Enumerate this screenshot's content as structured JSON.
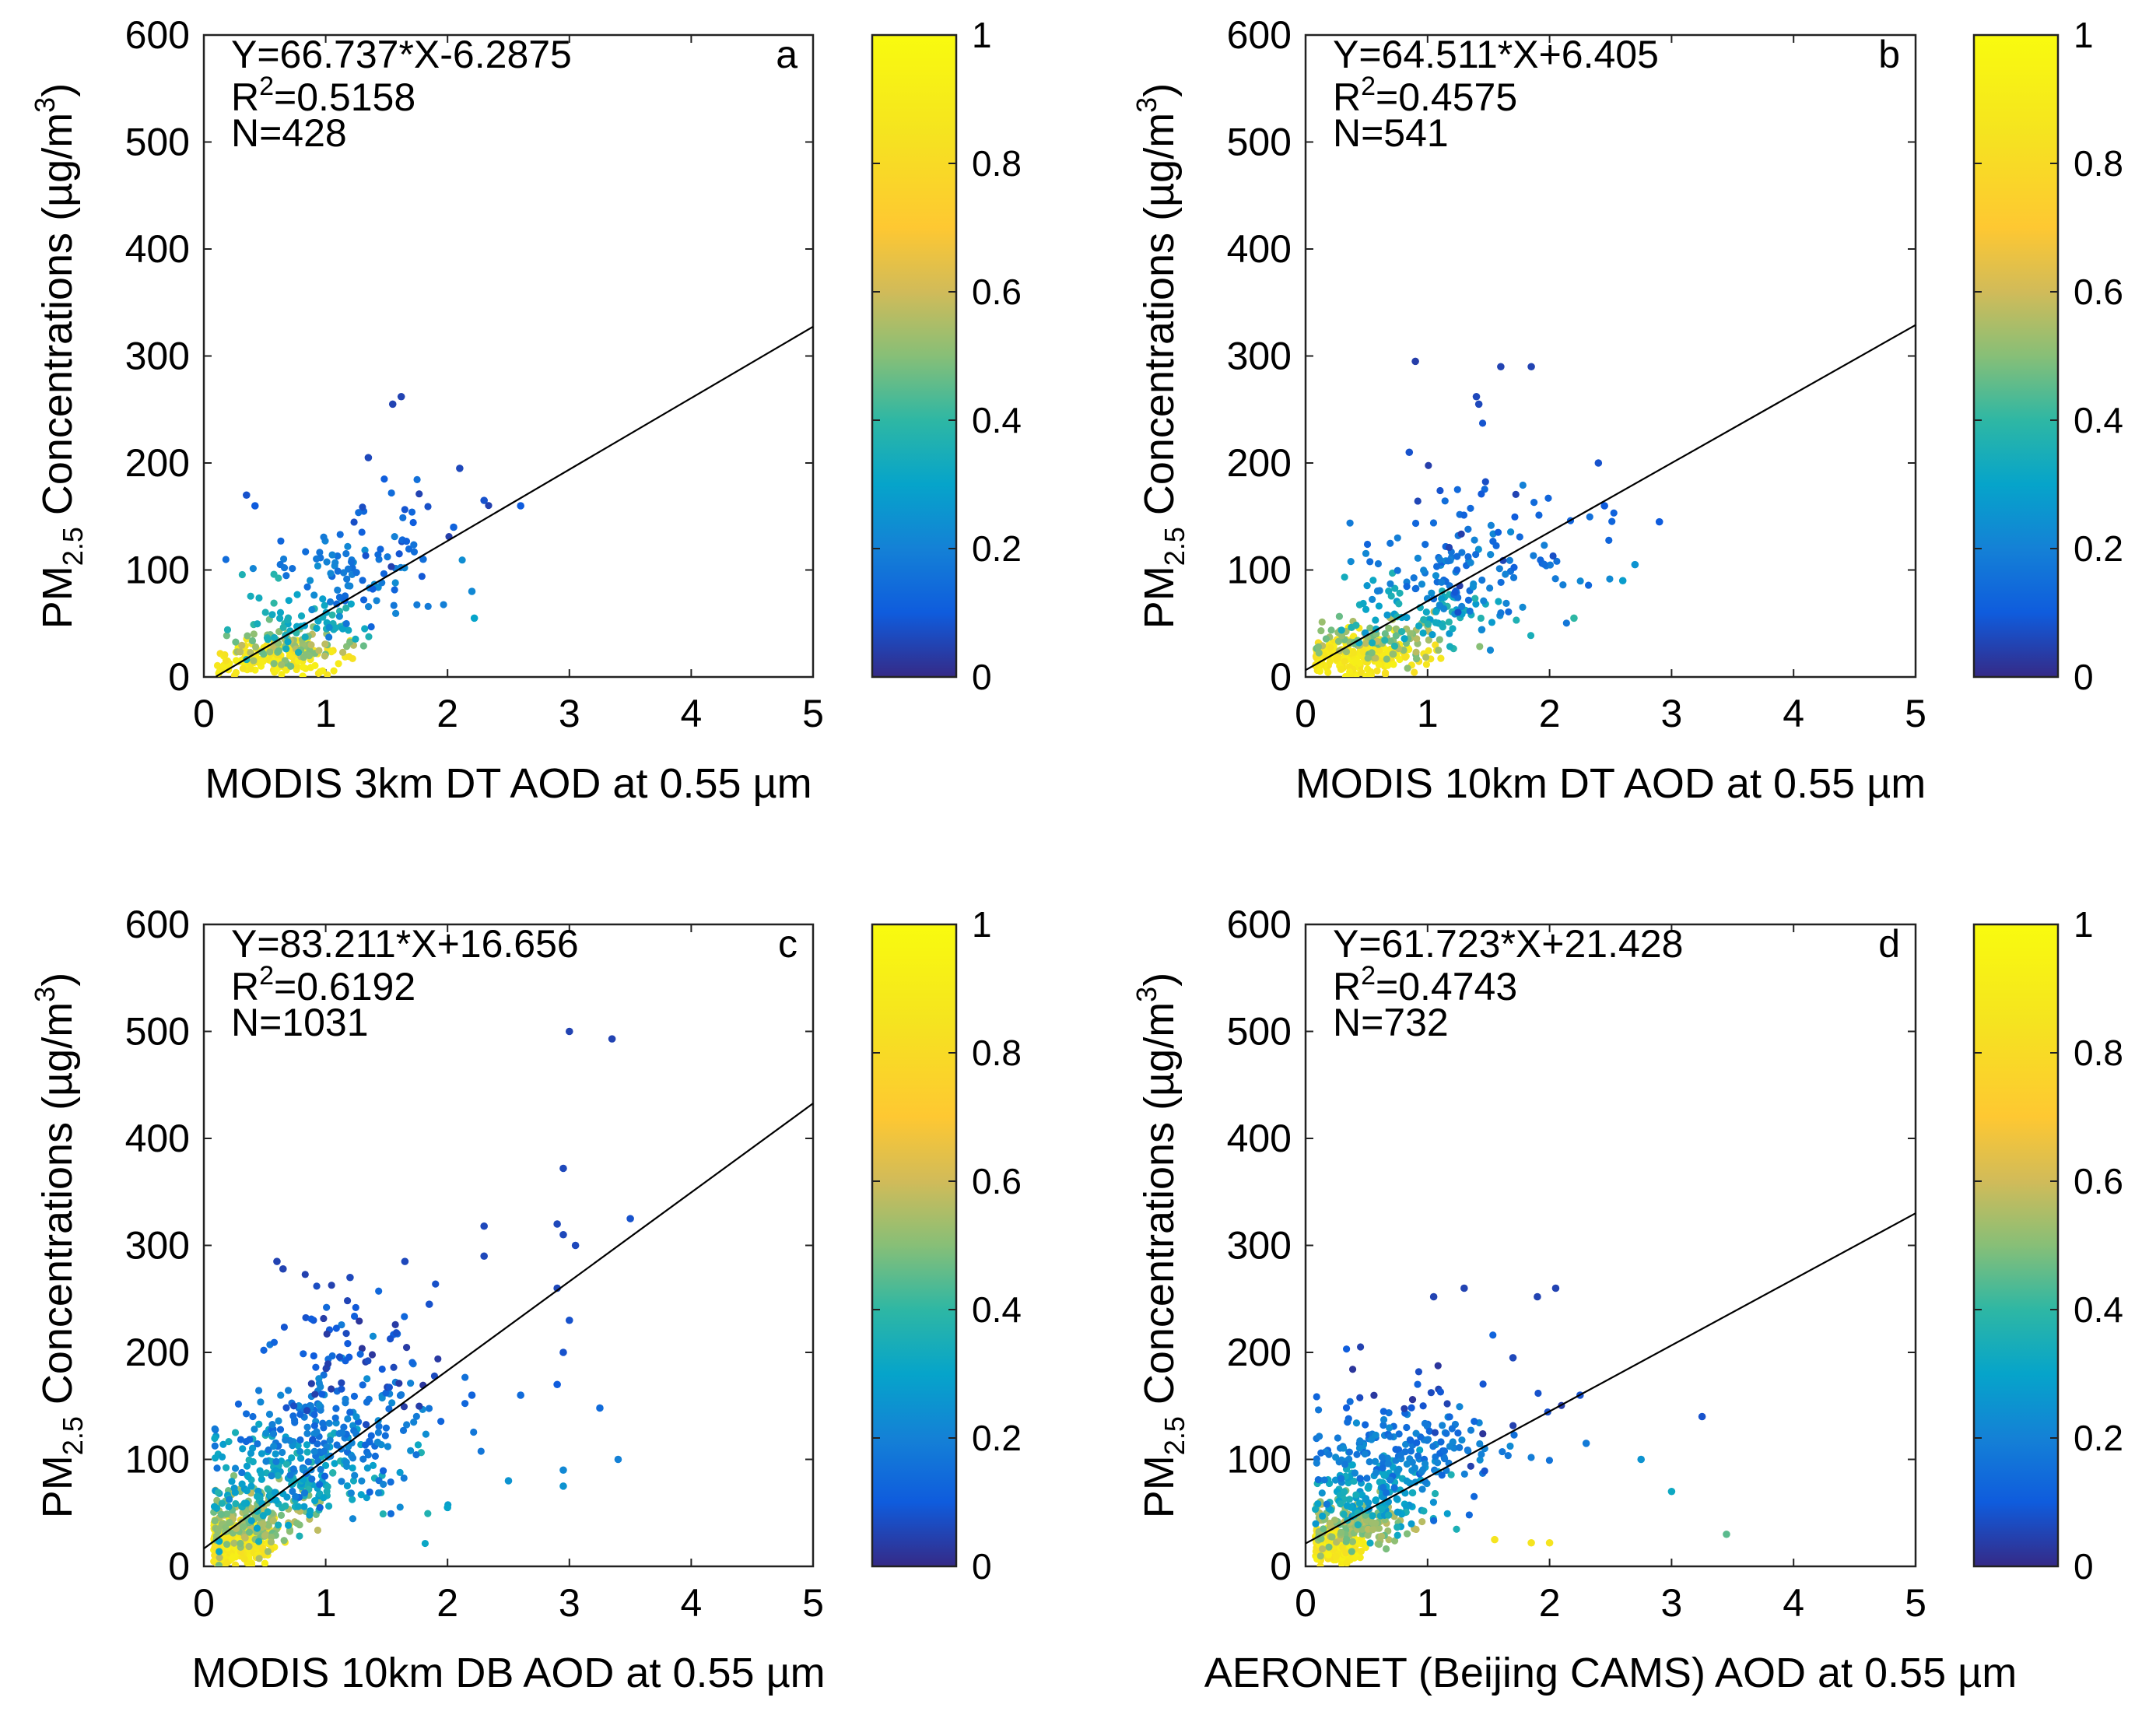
{
  "chart_data": [
    {
      "type": "scatter",
      "panel_label": "a",
      "xlabel": "MODIS 3km DT AOD at 0.55 µm",
      "ylabel": {
        "prefix": "PM",
        "subscript": "2.5",
        "suffix": " Concentrations (µg/m",
        "superscript": "3",
        "close": ")"
      },
      "xlim": [
        0,
        5
      ],
      "ylim": [
        0,
        600
      ],
      "xticks": [
        "0",
        "1",
        "2",
        "3",
        "4",
        "5"
      ],
      "yticks": [
        "0",
        "100",
        "200",
        "300",
        "400",
        "500",
        "600"
      ],
      "equation": "Y=66.737*X-6.2875",
      "r2": {
        "prefix": "R",
        "superscript": "2",
        "value": "=0.5158"
      },
      "n": "N=428",
      "fit": {
        "slope": 66.737,
        "intercept": -6.2875,
        "x_range": [
          0.1,
          5
        ]
      },
      "colorbar": {
        "range": [
          0,
          1
        ],
        "ticks": [
          "0",
          "0.2",
          "0.4",
          "0.6",
          "0.8",
          "1"
        ]
      },
      "clusters": [
        {
          "cx": 0.6,
          "cy": 18,
          "sx": 0.26,
          "sy": 8,
          "n": 160,
          "color": 0.88
        },
        {
          "cx": 0.7,
          "cy": 32,
          "sx": 0.28,
          "sy": 10,
          "n": 70,
          "color": 0.52
        },
        {
          "cx": 0.85,
          "cy": 55,
          "sx": 0.3,
          "sy": 14,
          "n": 60,
          "color": 0.34
        },
        {
          "cx": 1.2,
          "cy": 95,
          "sx": 0.35,
          "sy": 22,
          "n": 80,
          "color": 0.18
        },
        {
          "cx": 1.5,
          "cy": 140,
          "sx": 0.3,
          "sy": 30,
          "n": 25,
          "color": 0.1
        }
      ],
      "highlights": [
        {
          "x": 0.35,
          "y": 170,
          "c": 0.08
        },
        {
          "x": 0.42,
          "y": 160,
          "c": 0.1
        },
        {
          "x": 1.55,
          "y": 255,
          "c": 0.05
        },
        {
          "x": 1.62,
          "y": 262,
          "c": 0.05
        },
        {
          "x": 1.35,
          "y": 205,
          "c": 0.06
        },
        {
          "x": 2.1,
          "y": 195,
          "c": 0.06
        },
        {
          "x": 2.3,
          "y": 165,
          "c": 0.08
        },
        {
          "x": 2.6,
          "y": 160,
          "c": 0.1
        },
        {
          "x": 2.2,
          "y": 80,
          "c": 0.22
        },
        {
          "x": 2.22,
          "y": 55,
          "c": 0.3
        },
        {
          "x": 1.8,
          "y": 110,
          "c": 0.15
        },
        {
          "x": 2.05,
          "y": 140,
          "c": 0.12
        }
      ],
      "seed": 11
    },
    {
      "type": "scatter",
      "panel_label": "b",
      "xlabel": "MODIS 10km DT AOD at 0.55 µm",
      "ylabel": {
        "prefix": "PM",
        "subscript": "2.5",
        "suffix": " Concentrations (µg/m",
        "superscript": "3",
        "close": ")"
      },
      "xlim": [
        0,
        5
      ],
      "ylim": [
        0,
        600
      ],
      "xticks": [
        "0",
        "1",
        "2",
        "3",
        "4",
        "5"
      ],
      "yticks": [
        "0",
        "100",
        "200",
        "300",
        "400",
        "500",
        "600"
      ],
      "equation": "Y=64.511*X+6.405",
      "r2": {
        "prefix": "R",
        "superscript": "2",
        "value": "=0.4575"
      },
      "n": "N=541",
      "fit": {
        "slope": 64.511,
        "intercept": 6.405,
        "x_range": [
          0,
          5
        ]
      },
      "colorbar": {
        "range": [
          0,
          1
        ],
        "ticks": [
          "0",
          "0.2",
          "0.4",
          "0.6",
          "0.8",
          "1"
        ]
      },
      "clusters": [
        {
          "cx": 0.45,
          "cy": 18,
          "sx": 0.25,
          "sy": 9,
          "n": 200,
          "color": 0.88
        },
        {
          "cx": 0.6,
          "cy": 35,
          "sx": 0.3,
          "sy": 12,
          "n": 90,
          "color": 0.52
        },
        {
          "cx": 0.9,
          "cy": 60,
          "sx": 0.4,
          "sy": 16,
          "n": 80,
          "color": 0.32
        },
        {
          "cx": 1.3,
          "cy": 100,
          "sx": 0.45,
          "sy": 25,
          "n": 110,
          "color": 0.18
        },
        {
          "cx": 1.6,
          "cy": 150,
          "sx": 0.4,
          "sy": 30,
          "n": 30,
          "color": 0.1
        }
      ],
      "highlights": [
        {
          "x": 0.9,
          "y": 295,
          "c": 0.04
        },
        {
          "x": 1.6,
          "y": 290,
          "c": 0.05
        },
        {
          "x": 1.85,
          "y": 290,
          "c": 0.05
        },
        {
          "x": 1.4,
          "y": 262,
          "c": 0.06
        },
        {
          "x": 1.42,
          "y": 255,
          "c": 0.06
        },
        {
          "x": 2.9,
          "y": 145,
          "c": 0.1
        },
        {
          "x": 2.4,
          "y": 200,
          "c": 0.08
        },
        {
          "x": 2.6,
          "y": 90,
          "c": 0.28
        },
        {
          "x": 2.7,
          "y": 105,
          "c": 0.25
        },
        {
          "x": 2.45,
          "y": 160,
          "c": 0.1
        },
        {
          "x": 2.2,
          "y": 55,
          "c": 0.4
        },
        {
          "x": 0.85,
          "y": 210,
          "c": 0.08
        }
      ],
      "seed": 23
    },
    {
      "type": "scatter",
      "panel_label": "c",
      "xlabel": "MODIS 10km DB AOD at 0.55 µm",
      "ylabel": {
        "prefix": "PM",
        "subscript": "2.5",
        "suffix": " Concentrations (µg/m",
        "superscript": "3",
        "close": ")"
      },
      "xlim": [
        0,
        5
      ],
      "ylim": [
        0,
        600
      ],
      "xticks": [
        "0",
        "1",
        "2",
        "3",
        "4",
        "5"
      ],
      "yticks": [
        "0",
        "100",
        "200",
        "300",
        "400",
        "500",
        "600"
      ],
      "equation": "Y=83.211*X+16.656",
      "r2": {
        "prefix": "R",
        "superscript": "2",
        "value": "=0.6192"
      },
      "n": "N=1031",
      "fit": {
        "slope": 83.211,
        "intercept": 16.656,
        "x_range": [
          0,
          5
        ]
      },
      "colorbar": {
        "range": [
          0,
          1
        ],
        "ticks": [
          "0",
          "0.2",
          "0.4",
          "0.6",
          "0.8",
          "1"
        ]
      },
      "clusters": [
        {
          "cx": 0.25,
          "cy": 22,
          "sx": 0.15,
          "sy": 10,
          "n": 330,
          "color": 0.88
        },
        {
          "cx": 0.4,
          "cy": 45,
          "sx": 0.25,
          "sy": 15,
          "n": 160,
          "color": 0.52
        },
        {
          "cx": 0.7,
          "cy": 80,
          "sx": 0.4,
          "sy": 22,
          "n": 180,
          "color": 0.32
        },
        {
          "cx": 1.0,
          "cy": 125,
          "sx": 0.45,
          "sy": 30,
          "n": 200,
          "color": 0.18
        },
        {
          "cx": 1.2,
          "cy": 200,
          "sx": 0.4,
          "sy": 35,
          "n": 70,
          "color": 0.08
        }
      ],
      "highlights": [
        {
          "x": 3.0,
          "y": 500,
          "c": 0.05
        },
        {
          "x": 3.35,
          "y": 493,
          "c": 0.05
        },
        {
          "x": 2.95,
          "y": 372,
          "c": 0.06
        },
        {
          "x": 3.5,
          "y": 325,
          "c": 0.08
        },
        {
          "x": 2.9,
          "y": 320,
          "c": 0.06
        },
        {
          "x": 2.95,
          "y": 310,
          "c": 0.06
        },
        {
          "x": 2.3,
          "y": 318,
          "c": 0.06
        },
        {
          "x": 2.3,
          "y": 290,
          "c": 0.06
        },
        {
          "x": 3.05,
          "y": 300,
          "c": 0.06
        },
        {
          "x": 2.9,
          "y": 260,
          "c": 0.06
        },
        {
          "x": 3.0,
          "y": 230,
          "c": 0.08
        },
        {
          "x": 2.95,
          "y": 200,
          "c": 0.08
        },
        {
          "x": 2.9,
          "y": 170,
          "c": 0.1
        },
        {
          "x": 3.25,
          "y": 148,
          "c": 0.14
        },
        {
          "x": 3.4,
          "y": 100,
          "c": 0.2
        },
        {
          "x": 2.95,
          "y": 90,
          "c": 0.22
        },
        {
          "x": 2.95,
          "y": 75,
          "c": 0.25
        },
        {
          "x": 2.6,
          "y": 160,
          "c": 0.14
        },
        {
          "x": 2.5,
          "y": 80,
          "c": 0.25
        },
        {
          "x": 0.6,
          "y": 285,
          "c": 0.05
        },
        {
          "x": 0.65,
          "y": 278,
          "c": 0.05
        },
        {
          "x": 1.65,
          "y": 285,
          "c": 0.06
        },
        {
          "x": 1.2,
          "y": 270,
          "c": 0.06
        },
        {
          "x": 1.85,
          "y": 245,
          "c": 0.08
        },
        {
          "x": 2.0,
          "y": 55,
          "c": 0.3
        },
        {
          "x": 2.2,
          "y": 160,
          "c": 0.12
        }
      ],
      "seed": 37
    },
    {
      "type": "scatter",
      "panel_label": "d",
      "xlabel": "AERONET (Beijing CAMS) AOD at 0.55 µm",
      "ylabel": {
        "prefix": "PM",
        "subscript": "2.5",
        "suffix": " Concentrations (µg/m",
        "superscript": "3",
        "close": ")"
      },
      "xlim": [
        0,
        5
      ],
      "ylim": [
        0,
        600
      ],
      "xticks": [
        "0",
        "1",
        "2",
        "3",
        "4",
        "5"
      ],
      "yticks": [
        "0",
        "100",
        "200",
        "300",
        "400",
        "500",
        "600"
      ],
      "equation": "Y=61.723*X+21.428",
      "r2": {
        "prefix": "R",
        "superscript": "2",
        "value": "=0.4743"
      },
      "n": "N=732",
      "fit": {
        "slope": 61.723,
        "intercept": 21.428,
        "x_range": [
          0,
          5
        ]
      },
      "colorbar": {
        "range": [
          0,
          1
        ],
        "ticks": [
          "0",
          "0.2",
          "0.4",
          "0.6",
          "0.8",
          "1"
        ]
      },
      "clusters": [
        {
          "cx": 0.22,
          "cy": 20,
          "sx": 0.12,
          "sy": 8,
          "n": 260,
          "color": 0.88
        },
        {
          "cx": 0.4,
          "cy": 40,
          "sx": 0.22,
          "sy": 12,
          "n": 130,
          "color": 0.52
        },
        {
          "cx": 0.6,
          "cy": 70,
          "sx": 0.3,
          "sy": 18,
          "n": 140,
          "color": 0.3
        },
        {
          "cx": 0.8,
          "cy": 110,
          "sx": 0.4,
          "sy": 22,
          "n": 160,
          "color": 0.18
        },
        {
          "cx": 1.1,
          "cy": 150,
          "sx": 0.4,
          "sy": 25,
          "n": 30,
          "color": 0.08
        }
      ],
      "highlights": [
        {
          "x": 1.05,
          "y": 252,
          "c": 0.05
        },
        {
          "x": 1.3,
          "y": 260,
          "c": 0.05
        },
        {
          "x": 1.9,
          "y": 252,
          "c": 0.05
        },
        {
          "x": 2.05,
          "y": 260,
          "c": 0.05
        },
        {
          "x": 1.7,
          "y": 195,
          "c": 0.06
        },
        {
          "x": 2.25,
          "y": 160,
          "c": 0.08
        },
        {
          "x": 3.25,
          "y": 140,
          "c": 0.08
        },
        {
          "x": 2.75,
          "y": 100,
          "c": 0.25
        },
        {
          "x": 3.0,
          "y": 70,
          "c": 0.32
        },
        {
          "x": 3.45,
          "y": 30,
          "c": 0.45
        },
        {
          "x": 1.55,
          "y": 25,
          "c": 0.85
        },
        {
          "x": 1.85,
          "y": 22,
          "c": 0.85
        },
        {
          "x": 2.0,
          "y": 22,
          "c": 0.85
        },
        {
          "x": 2.3,
          "y": 115,
          "c": 0.18
        }
      ],
      "seed": 51
    }
  ]
}
